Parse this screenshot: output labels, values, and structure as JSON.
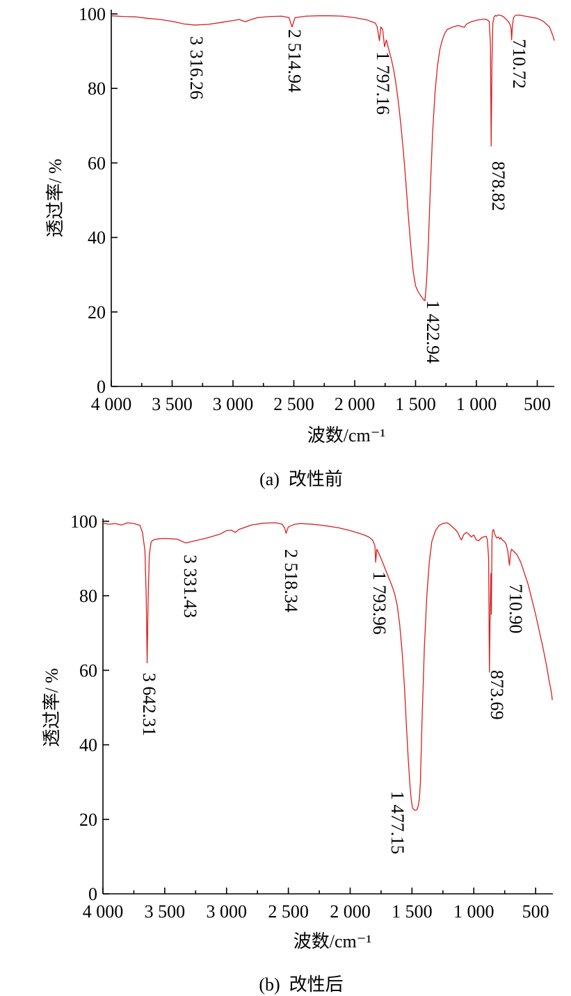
{
  "chart_data": [
    {
      "type": "line",
      "title": "",
      "caption": "(a)  改性前",
      "xlabel": "波数/cm⁻¹",
      "ylabel": "透过率/ %",
      "xlim": [
        4000,
        360
      ],
      "ylim": [
        0,
        100
      ],
      "x_reversed": true,
      "x_ticks": [
        4000,
        3500,
        3000,
        2500,
        2000,
        1500,
        1000,
        500
      ],
      "x_tick_labels": [
        "4 000",
        "3 500",
        "3 000",
        "2 500",
        "2 000",
        "1 500",
        "1 000",
        "500"
      ],
      "y_ticks": [
        0,
        20,
        40,
        60,
        80,
        100
      ],
      "y_tick_labels": [
        "0",
        "20",
        "40",
        "60",
        "80",
        "100"
      ],
      "grid": false,
      "color": "#d81e1e",
      "series": [
        {
          "x": [
            4000,
            3900,
            3800,
            3700,
            3600,
            3500,
            3400,
            3316,
            3200,
            3100,
            3000,
            2950,
            2900,
            2850,
            2800,
            2700,
            2600,
            2540,
            2514.94,
            2490,
            2400,
            2300,
            2200,
            2100,
            2000,
            1900,
            1830,
            1815,
            1797.16,
            1785,
            1770,
            1755,
            1740,
            1720,
            1700,
            1680,
            1660,
            1640,
            1620,
            1600,
            1580,
            1560,
            1540,
            1520,
            1500,
            1480,
            1460,
            1440,
            1422.94,
            1410,
            1395,
            1380,
            1360,
            1340,
            1320,
            1300,
            1280,
            1260,
            1240,
            1200,
            1150,
            1100,
            1080,
            1050,
            1000,
            960,
            930,
            910,
            895,
            885,
            878.82,
            872,
            865,
            855,
            845,
            835,
            820,
            800,
            780,
            760,
            740,
            725,
            715,
            710.72,
            705,
            695,
            680,
            650,
            600,
            550,
            500,
            450,
            400,
            370,
            360
          ],
          "y": [
            99.5,
            99.3,
            99.2,
            98.8,
            98.5,
            98.0,
            97.3,
            97.0,
            97.2,
            97.7,
            98.2,
            98.5,
            97.9,
            98.5,
            99.0,
            99.3,
            99.4,
            99.0,
            96.5,
            99.0,
            99.4,
            99.5,
            99.5,
            99.4,
            99.0,
            98.4,
            97.5,
            96.5,
            92.8,
            96.5,
            95.8,
            91.2,
            93.0,
            90.5,
            88.0,
            85.0,
            81.0,
            76.0,
            70.0,
            63.0,
            55.0,
            46.0,
            38.0,
            31.0,
            27.0,
            25.5,
            24.5,
            23.5,
            23.0,
            28.0,
            38.0,
            52.0,
            68.0,
            79.0,
            86.0,
            90.5,
            93.0,
            94.8,
            95.8,
            96.4,
            96.9,
            96.4,
            97.3,
            97.8,
            98.3,
            98.5,
            98.6,
            98.4,
            98.0,
            92.0,
            64.5,
            88.0,
            97.5,
            99.2,
            99.6,
            99.4,
            99.7,
            99.6,
            99.3,
            98.7,
            98.0,
            97.3,
            96.0,
            93.0,
            96.5,
            99.0,
            99.6,
            99.7,
            99.4,
            99.1,
            98.8,
            98.0,
            96.5,
            94.0,
            92.8
          ]
        }
      ],
      "annotations": [
        "3 316.26",
        "2 514.94",
        "1 797.16",
        "1 422.94",
        "878.82",
        "710.72"
      ]
    },
    {
      "type": "line",
      "title": "",
      "caption": "(b)  改性后",
      "xlabel": "波数/cm⁻¹",
      "ylabel": "透过率/ %",
      "xlim": [
        4000,
        360
      ],
      "ylim": [
        0,
        100
      ],
      "x_reversed": true,
      "x_ticks": [
        4000,
        3500,
        3000,
        2500,
        2000,
        1500,
        1000,
        500
      ],
      "x_tick_labels": [
        "4 000",
        "3 500",
        "3 000",
        "2 500",
        "2 000",
        "1 500",
        "1 000",
        "500"
      ],
      "y_ticks": [
        0,
        20,
        40,
        60,
        80,
        100
      ],
      "y_tick_labels": [
        "0",
        "20",
        "40",
        "60",
        "80",
        "100"
      ],
      "grid": false,
      "color": "#d81e1e",
      "series": [
        {
          "x": [
            4000,
            3950,
            3900,
            3850,
            3800,
            3750,
            3700,
            3680,
            3660,
            3650,
            3642.31,
            3635,
            3625,
            3610,
            3590,
            3550,
            3500,
            3450,
            3400,
            3331.43,
            3250,
            3150,
            3050,
            3000,
            2960,
            2930,
            2900,
            2850,
            2800,
            2700,
            2600,
            2550,
            2530,
            2518.34,
            2500,
            2450,
            2400,
            2300,
            2200,
            2100,
            2000,
            1900,
            1850,
            1820,
            1800,
            1793.96,
            1785,
            1770,
            1750,
            1720,
            1690,
            1660,
            1640,
            1620,
            1600,
            1580,
            1560,
            1545,
            1530,
            1515,
            1505,
            1495,
            1477.15,
            1460,
            1450,
            1440,
            1432,
            1420,
            1400,
            1380,
            1360,
            1340,
            1310,
            1280,
            1250,
            1220,
            1200,
            1180,
            1150,
            1130,
            1110,
            1100,
            1080,
            1060,
            1040,
            1020,
            1000,
            980,
            960,
            940,
            920,
            900,
            890,
            880,
            873.69,
            868,
            862,
            858,
            853,
            848,
            840,
            830,
            815,
            800,
            790,
            780,
            770,
            760,
            740,
            725,
            715,
            710.9,
            705,
            695,
            680,
            650,
            620,
            590,
            560,
            530,
            500,
            470,
            440,
            410,
            390,
            380,
            375,
            370,
            365
          ],
          "y": [
            99.5,
            99.2,
            99.4,
            99.0,
            99.6,
            99.4,
            98.9,
            97.0,
            92.0,
            80.0,
            62.0,
            78.0,
            91.0,
            94.5,
            95.0,
            95.3,
            95.4,
            95.3,
            95.2,
            94.2,
            94.8,
            95.6,
            96.6,
            97.5,
            97.6,
            97.0,
            97.8,
            98.4,
            99.0,
            99.5,
            99.6,
            99.2,
            98.2,
            96.8,
            98.5,
            99.2,
            99.4,
            99.2,
            98.8,
            98.3,
            97.5,
            96.5,
            95.8,
            95.0,
            93.5,
            89.0,
            92.5,
            91.5,
            90.0,
            87.5,
            85.0,
            82.5,
            80.5,
            77.5,
            72.5,
            65.0,
            55.0,
            45.0,
            36.0,
            28.5,
            25.0,
            23.0,
            22.4,
            22.6,
            23.5,
            25.5,
            30.0,
            45.0,
            66.0,
            80.0,
            89.0,
            94.5,
            97.5,
            98.9,
            99.4,
            99.6,
            99.3,
            98.7,
            97.8,
            97.0,
            95.5,
            95.0,
            96.5,
            97.0,
            96.5,
            95.8,
            96.3,
            95.0,
            94.8,
            95.5,
            95.8,
            96.0,
            95.0,
            90.0,
            59.5,
            75.0,
            86.0,
            75.0,
            95.0,
            97.5,
            97.8,
            96.5,
            95.5,
            95.8,
            95.2,
            95.6,
            95.0,
            94.8,
            94.0,
            92.0,
            89.0,
            88.2,
            91.0,
            92.5,
            92.0,
            91.0,
            89.0,
            86.0,
            83.0,
            79.0,
            75.0,
            70.5,
            66.0,
            61.0,
            57.0,
            55.5,
            54.5,
            53.5,
            52.0
          ]
        }
      ],
      "annotations": [
        "3 642.31",
        "3 331.43",
        "2 518.34",
        "1 793.96",
        "1 477.15",
        "873.69",
        "710.90"
      ]
    }
  ]
}
